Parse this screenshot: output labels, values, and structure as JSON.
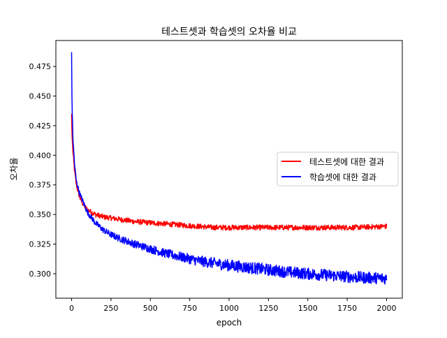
{
  "chart_data": {
    "type": "line",
    "title": "테스트셋과 학습셋의 오차율 비교",
    "xlabel": "epoch",
    "ylabel": "오차율",
    "xlim": [
      -100,
      2100
    ],
    "ylim": [
      0.2793,
      0.4969
    ],
    "xticks": [
      0,
      250,
      500,
      750,
      1000,
      1250,
      1500,
      1750,
      2000
    ],
    "xtick_labels": [
      "0",
      "250",
      "500",
      "750",
      "1000",
      "1250",
      "1500",
      "1750",
      "2000"
    ],
    "yticks": [
      0.3,
      0.325,
      0.35,
      0.375,
      0.4,
      0.425,
      0.45,
      0.475
    ],
    "ytick_labels": [
      "0.300",
      "0.325",
      "0.350",
      "0.375",
      "0.400",
      "0.425",
      "0.450",
      "0.475"
    ],
    "grid": false,
    "legend_position": "center-right",
    "x": [
      0,
      2,
      5,
      10,
      20,
      30,
      50,
      75,
      100,
      150,
      200,
      250,
      300,
      400,
      500,
      600,
      700,
      800,
      900,
      1000,
      1200,
      1400,
      1600,
      1800,
      2000
    ],
    "series": [
      {
        "name": "테스트셋에 대한 결과",
        "color": "#ff0000",
        "values": [
          0.435,
          0.42,
          0.41,
          0.4,
          0.385,
          0.375,
          0.365,
          0.358,
          0.354,
          0.35,
          0.348,
          0.347,
          0.346,
          0.344,
          0.343,
          0.342,
          0.341,
          0.34,
          0.339,
          0.339,
          0.339,
          0.339,
          0.339,
          0.339,
          0.34
        ]
      },
      {
        "name": "학습셋에 대한 결과",
        "color": "#0000ff",
        "values": [
          0.487,
          0.45,
          0.43,
          0.41,
          0.39,
          0.378,
          0.368,
          0.36,
          0.352,
          0.343,
          0.337,
          0.333,
          0.33,
          0.325,
          0.321,
          0.317,
          0.314,
          0.311,
          0.309,
          0.307,
          0.304,
          0.301,
          0.299,
          0.297,
          0.296
        ]
      }
    ]
  }
}
